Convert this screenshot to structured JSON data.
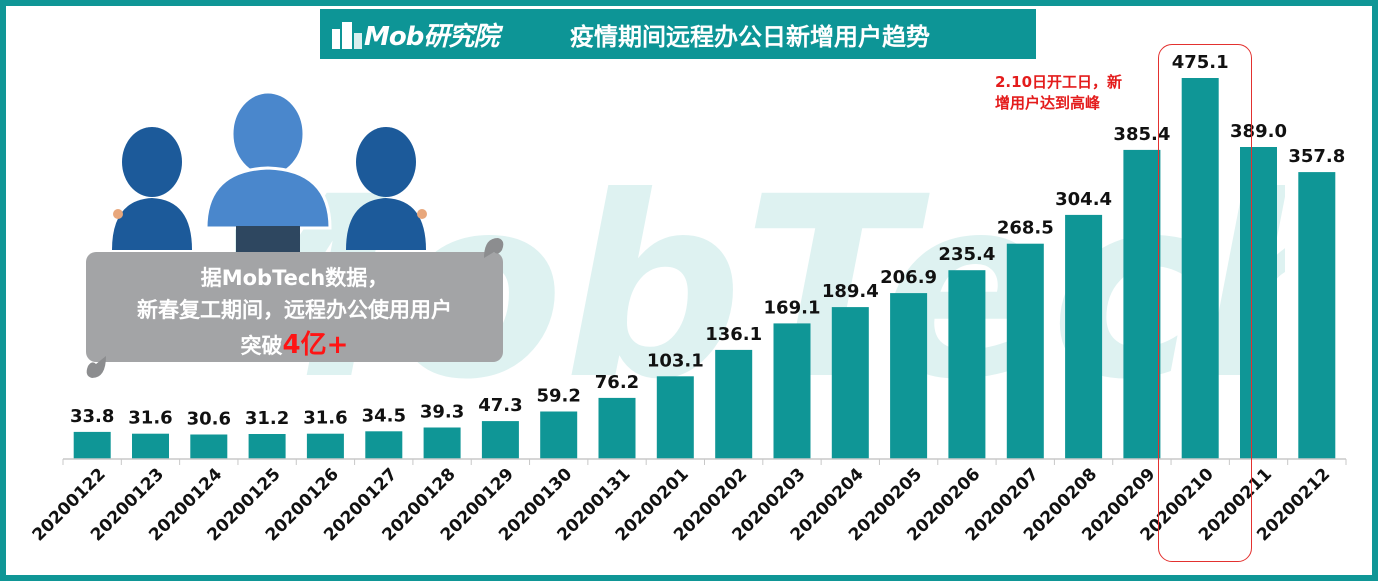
{
  "header": {
    "logo_text": "Mob研究院",
    "title": "疫情期间远程办公日新增用户趋势"
  },
  "watermark": {
    "text": "MobTech"
  },
  "callout": {
    "line1": "据MobTech数据，",
    "line2": "新春复工期间，远程办公使用用户",
    "line3_prefix": "突破",
    "line3_highlight": "4亿+"
  },
  "annotation": {
    "line1": "2.10日开工日，新",
    "line2": "增用户达到高峰"
  },
  "colors": {
    "bar": "#0f9696",
    "frame": "#0f9696",
    "header": "#0d9596",
    "annotation": "#e41c1c",
    "person_dark": "#1c5a9a",
    "person_light": "#4a87cc"
  },
  "icons": [
    "people-icon"
  ],
  "chart_data": {
    "type": "bar",
    "categories": [
      "20200122",
      "20200123",
      "20200124",
      "20200125",
      "20200126",
      "20200127",
      "20200128",
      "20200129",
      "20200130",
      "20200131",
      "20200201",
      "20200202",
      "20200203",
      "20200204",
      "20200205",
      "20200206",
      "20200207",
      "20200208",
      "20200209",
      "20200210",
      "20200211",
      "20200212"
    ],
    "values": [
      33.8,
      31.6,
      30.6,
      31.2,
      31.6,
      34.5,
      39.3,
      47.3,
      59.2,
      76.2,
      103.1,
      136.1,
      169.1,
      189.4,
      206.9,
      235.4,
      268.5,
      304.4,
      385.4,
      475.1,
      389.0,
      357.8
    ],
    "value_labels": [
      "33.8",
      "31.6",
      "30.6",
      "31.2",
      "31.6",
      "34.5",
      "39.3",
      "47.3",
      "59.2",
      "76.2",
      "103.1",
      "136.1",
      "169.1",
      "189.4",
      "206.9",
      "235.4",
      "268.5",
      "304.4",
      "385.4",
      "475.1",
      "389.0",
      "357.8"
    ],
    "title": "疫情期间远程办公日新增用户趋势",
    "xlabel": "",
    "ylabel": "",
    "ylim": [
      0,
      500
    ],
    "grid": false,
    "highlight_category": "20200210"
  }
}
